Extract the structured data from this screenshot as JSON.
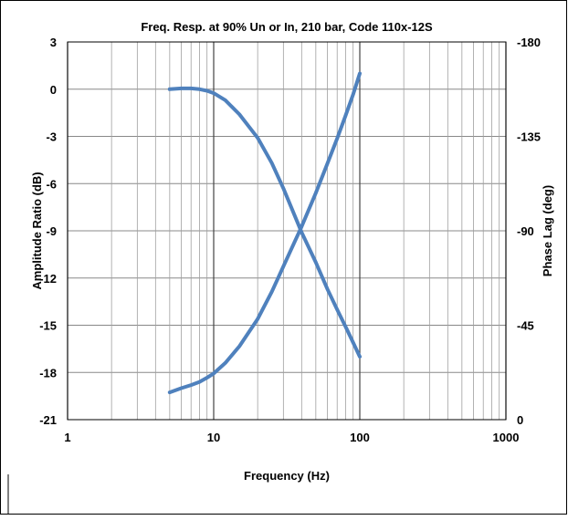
{
  "chart_data": {
    "type": "line",
    "title": "Freq. Resp. at 90% Un or In, 210 bar, Code 110x-12S",
    "xlabel": "Frequency (Hz)",
    "ylabel": "Amplitude Ratio (dB)",
    "y2label": "Phase Lag (deg)",
    "xscale": "log",
    "xlim": [
      1,
      1000
    ],
    "ylim": [
      -21,
      3
    ],
    "y2lim": [
      0,
      -180
    ],
    "grid": true,
    "x_ticks": [
      "1",
      "10",
      "100",
      "1000"
    ],
    "y_ticks": [
      "3",
      "0",
      "-3",
      "-6",
      "-9",
      "-12",
      "-15",
      "-18",
      "-21"
    ],
    "y2_ticks": [
      "-180",
      "-135",
      "-90",
      "-45",
      "0"
    ],
    "line_color": "#4f81bd",
    "series": [
      {
        "axis": "left",
        "x": [
          5,
          6,
          7,
          8,
          9,
          10,
          12,
          15,
          20,
          25,
          30,
          40,
          50,
          60,
          70,
          80,
          90,
          100
        ],
        "y": [
          0,
          0.05,
          0.05,
          0,
          -0.1,
          -0.25,
          -0.7,
          -1.6,
          -3.1,
          -4.7,
          -6.3,
          -9.1,
          -11.0,
          -12.7,
          -14.0,
          -15.1,
          -16.1,
          -17.0
        ]
      },
      {
        "axis": "right",
        "x": [
          5,
          6,
          7,
          8,
          9,
          10,
          12,
          15,
          20,
          25,
          30,
          40,
          50,
          60,
          70,
          80,
          90,
          100
        ],
        "y": [
          -13,
          -15,
          -16.5,
          -18,
          -20,
          -22,
          -27,
          -35,
          -48,
          -61,
          -73,
          -92,
          -108,
          -122,
          -134,
          -145,
          -155,
          -165
        ]
      }
    ]
  }
}
